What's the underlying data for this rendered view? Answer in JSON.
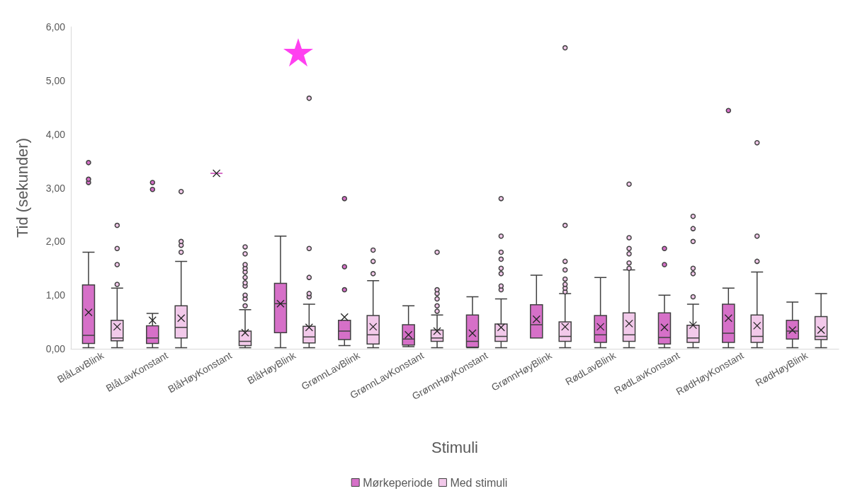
{
  "chart_data": {
    "type": "box",
    "xlabel": "Stimuli",
    "ylabel": "Tid (sekunder)",
    "categories": [
      "BlåLavBlink",
      "BlåLavKonstant",
      "BlåHøyKonstant",
      "BlåHøyBlink",
      "GrønnLavBlink",
      "GrønnLavKonstant",
      "GrønnHøyKonstant",
      "GrønnHøyBlink",
      "RødLavBlink",
      "RødLavKonstant",
      "RødHøyKonstant",
      "RødHøyBlink"
    ],
    "series": [
      {
        "name": "Mørkeperiode",
        "color": "#d670c8",
        "boxes": [
          {
            "low": 0.02,
            "q1": 0.1,
            "median": 0.25,
            "q3": 1.19,
            "high": 1.8,
            "mean": 0.68,
            "outliers": [
              3.1,
              3.16,
              3.47
            ]
          },
          {
            "low": 0.02,
            "q1": 0.1,
            "median": 0.2,
            "q3": 0.43,
            "high": 0.66,
            "mean": 0.53,
            "outliers": [
              2.97,
              3.1
            ]
          },
          {
            "low": 3.27,
            "q1": 3.27,
            "median": 3.27,
            "q3": 3.27,
            "high": 3.27,
            "mean": 3.27
          },
          {
            "low": 0.02,
            "q1": 0.3,
            "median": 0.84,
            "q3": 1.22,
            "high": 2.1,
            "mean": 0.84
          },
          {
            "low": 0.06,
            "q1": 0.17,
            "median": 0.33,
            "q3": 0.53,
            "high": 0.53,
            "mean": 0.59,
            "outliers": [
              1.1,
              1.53,
              2.8
            ]
          },
          {
            "low": 0.04,
            "q1": 0.07,
            "median": 0.18,
            "q3": 0.45,
            "high": 0.8,
            "mean": 0.26
          },
          {
            "low": 0.02,
            "q1": 0.03,
            "median": 0.14,
            "q3": 0.63,
            "high": 0.97,
            "mean": 0.29
          },
          {
            "low": 0.2,
            "q1": 0.2,
            "median": 0.45,
            "q3": 0.82,
            "high": 1.37,
            "mean": 0.55
          },
          {
            "low": 0.02,
            "q1": 0.12,
            "median": 0.26,
            "q3": 0.62,
            "high": 1.33,
            "mean": 0.41
          },
          {
            "low": 0.02,
            "q1": 0.09,
            "median": 0.21,
            "q3": 0.67,
            "high": 1.0,
            "mean": 0.4,
            "outliers": [
              1.57,
              1.87
            ]
          },
          {
            "low": 0.02,
            "q1": 0.12,
            "median": 0.29,
            "q3": 0.83,
            "high": 1.13,
            "mean": 0.57,
            "outliers": [
              4.44
            ]
          },
          {
            "low": 0.02,
            "q1": 0.18,
            "median": 0.33,
            "q3": 0.53,
            "high": 0.87,
            "mean": 0.35
          }
        ]
      },
      {
        "name": "Med stimuli",
        "color": "#f2c9ea",
        "boxes": [
          {
            "low": 0.02,
            "q1": 0.15,
            "median": 0.2,
            "q3": 0.53,
            "high": 1.13,
            "mean": 0.41,
            "outliers": [
              1.2,
              1.57,
              1.87,
              2.3
            ]
          },
          {
            "low": 0.02,
            "q1": 0.2,
            "median": 0.4,
            "q3": 0.8,
            "high": 1.63,
            "mean": 0.57,
            "outliers": [
              1.8,
              1.93,
              2.0,
              2.93
            ]
          },
          {
            "low": 0.02,
            "q1": 0.06,
            "median": 0.14,
            "q3": 0.33,
            "high": 0.73,
            "mean": 0.3,
            "outliers": [
              0.8,
              0.93,
              1.0,
              1.17,
              1.23,
              1.33,
              1.43,
              1.5,
              1.57,
              1.77,
              1.9
            ]
          },
          {
            "low": 0.02,
            "q1": 0.11,
            "median": 0.22,
            "q3": 0.42,
            "high": 0.83,
            "mean": 0.4,
            "outliers": [
              0.97,
              1.03,
              1.33,
              1.87,
              4.67
            ]
          },
          {
            "low": 0.02,
            "q1": 0.09,
            "median": 0.26,
            "q3": 0.62,
            "high": 1.27,
            "mean": 0.41,
            "outliers": [
              1.4,
              1.63,
              1.84
            ]
          },
          {
            "low": 0.02,
            "q1": 0.14,
            "median": 0.2,
            "q3": 0.35,
            "high": 0.63,
            "mean": 0.33,
            "outliers": [
              0.7,
              0.8,
              0.93,
              1.03,
              1.1,
              1.8
            ]
          },
          {
            "low": 0.02,
            "q1": 0.14,
            "median": 0.23,
            "q3": 0.46,
            "high": 0.93,
            "mean": 0.4,
            "outliers": [
              1.1,
              1.17,
              1.4,
              1.5,
              1.67,
              1.8,
              2.1,
              2.8
            ]
          },
          {
            "low": 0.02,
            "q1": 0.14,
            "median": 0.23,
            "q3": 0.5,
            "high": 1.03,
            "mean": 0.41,
            "outliers": [
              1.06,
              1.13,
              1.2,
              1.3,
              1.47,
              1.63,
              2.3,
              5.61
            ]
          },
          {
            "low": 0.02,
            "q1": 0.14,
            "median": 0.26,
            "q3": 0.67,
            "high": 1.47,
            "mean": 0.47,
            "outliers": [
              1.5,
              1.6,
              1.77,
              1.87,
              2.07,
              3.07
            ]
          },
          {
            "low": 0.02,
            "q1": 0.12,
            "median": 0.2,
            "q3": 0.44,
            "high": 0.83,
            "mean": 0.44,
            "outliers": [
              0.97,
              1.4,
              1.5,
              2.0,
              2.24,
              2.47
            ]
          },
          {
            "low": 0.02,
            "q1": 0.12,
            "median": 0.23,
            "q3": 0.63,
            "high": 1.43,
            "mean": 0.43,
            "outliers": [
              1.63,
              2.1,
              3.84
            ]
          },
          {
            "low": 0.02,
            "q1": 0.17,
            "median": 0.23,
            "q3": 0.6,
            "high": 1.03,
            "mean": 0.35
          }
        ]
      }
    ],
    "ylim": [
      0,
      6
    ],
    "yticks": [
      {
        "value": 0,
        "label": "0,00"
      },
      {
        "value": 1,
        "label": "1,00"
      },
      {
        "value": 2,
        "label": "2,00"
      },
      {
        "value": 3,
        "label": "3,00"
      },
      {
        "value": 4,
        "label": "4,00"
      },
      {
        "value": 5,
        "label": "5,00"
      },
      {
        "value": 6,
        "label": "6,00"
      }
    ],
    "grid": false,
    "legend": "bottom"
  }
}
